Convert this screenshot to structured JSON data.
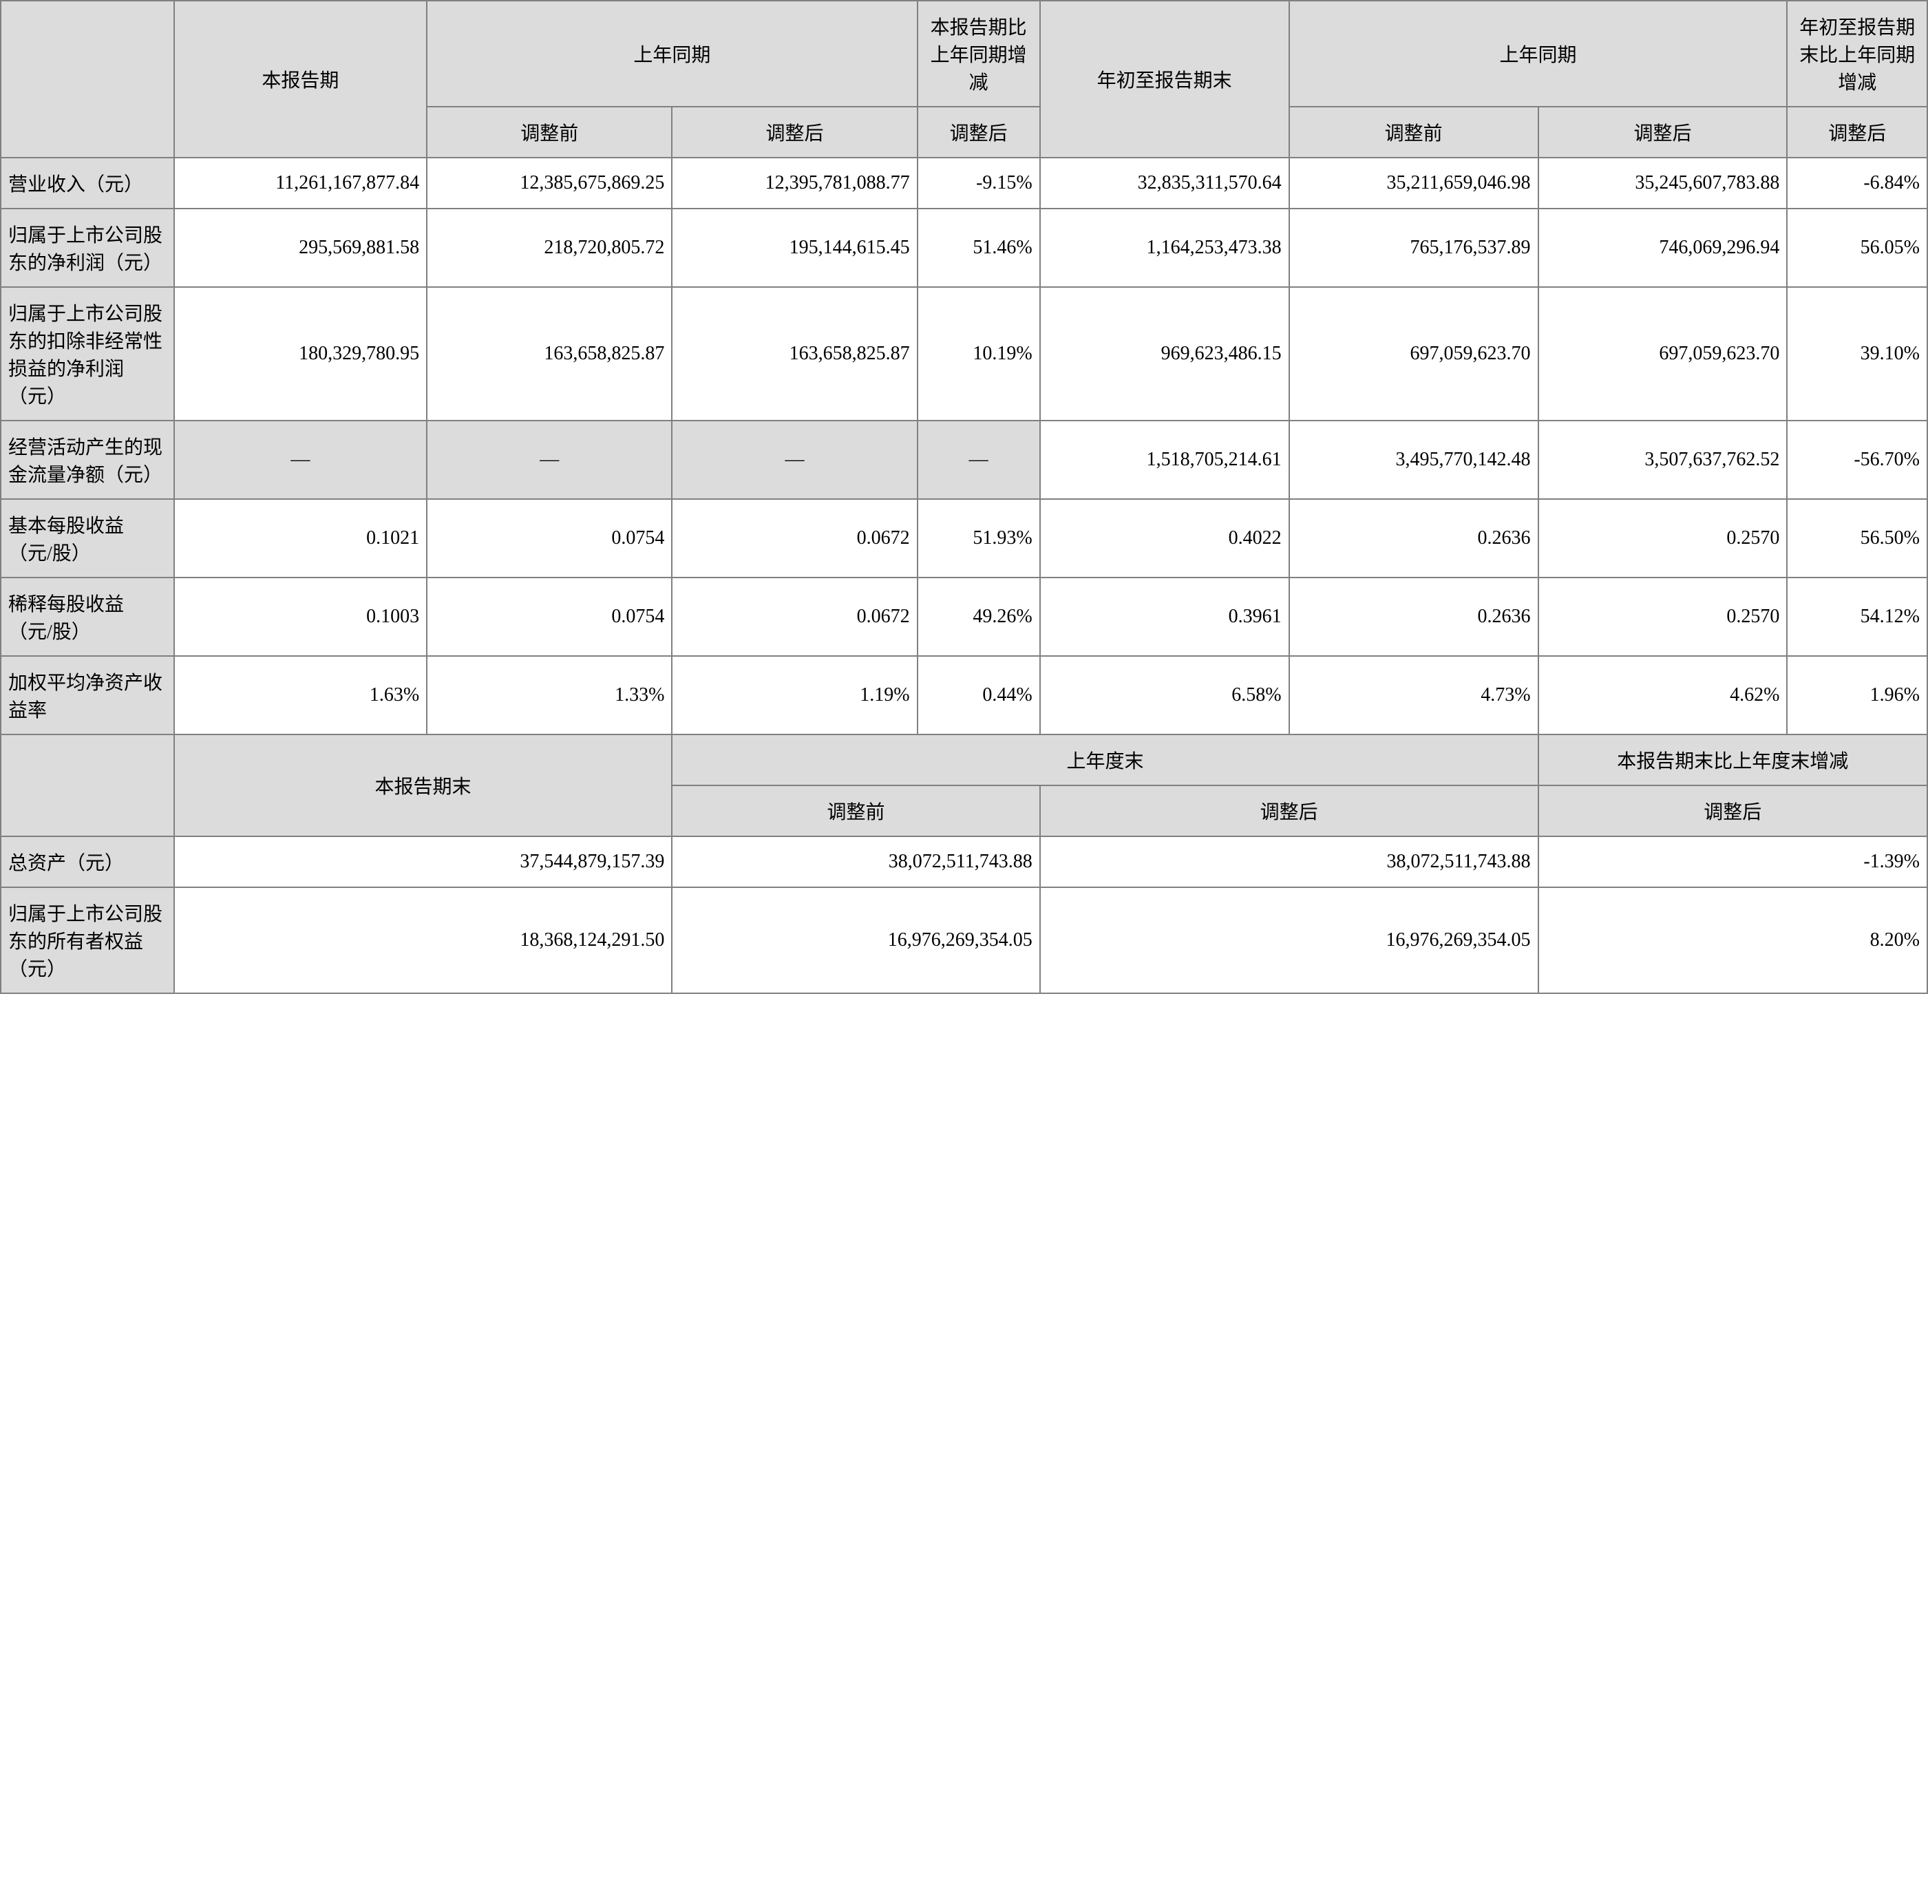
{
  "table": {
    "colors": {
      "header_bg": "#dcdcdc",
      "cell_bg": "#ffffff",
      "border": "#808080"
    },
    "font_size": 28,
    "col_widths_pct": [
      8.9,
      13.0,
      12.6,
      12.6,
      6.3,
      12.8,
      12.8,
      12.8,
      7.2
    ],
    "header1": {
      "c1": "本报告期",
      "c2": "上年同期",
      "c3": "本报告期比上年同期增减",
      "c4": "年初至报告期末",
      "c5": "上年同期",
      "c6": "年初至报告期末比上年同期增减"
    },
    "header2": {
      "c1": "调整前",
      "c2": "调整后",
      "c3": "调整后",
      "c4": "调整前",
      "c5": "调整后",
      "c6": "调整后"
    },
    "rows": [
      {
        "label": "营业收入（元）",
        "v1": "11,261,167,877.84",
        "v2": "12,385,675,869.25",
        "v3": "12,395,781,088.77",
        "v4": "-9.15%",
        "v5": "32,835,311,570.64",
        "v6": "35,211,659,046.98",
        "v7": "35,245,607,783.88",
        "v8": "-6.84%"
      },
      {
        "label": "归属于上市公司股东的净利润（元）",
        "v1": "295,569,881.58",
        "v2": "218,720,805.72",
        "v3": "195,144,615.45",
        "v4": "51.46%",
        "v5": "1,164,253,473.38",
        "v6": "765,176,537.89",
        "v7": "746,069,296.94",
        "v8": "56.05%"
      },
      {
        "label": "归属于上市公司股东的扣除非经常性损益的净利润（元）",
        "v1": "180,329,780.95",
        "v2": "163,658,825.87",
        "v3": "163,658,825.87",
        "v4": "10.19%",
        "v5": "969,623,486.15",
        "v6": "697,059,623.70",
        "v7": "697,059,623.70",
        "v8": "39.10%"
      },
      {
        "label": "经营活动产生的现金流量净额（元）",
        "dash": true,
        "v1": "—",
        "v2": "—",
        "v3": "—",
        "v4": "—",
        "v5": "1,518,705,214.61",
        "v6": "3,495,770,142.48",
        "v7": "3,507,637,762.52",
        "v8": "-56.70%"
      },
      {
        "label": "基本每股收益（元/股）",
        "v1": "0.1021",
        "v2": "0.0754",
        "v3": "0.0672",
        "v4": "51.93%",
        "v5": "0.4022",
        "v6": "0.2636",
        "v7": "0.2570",
        "v8": "56.50%"
      },
      {
        "label": "稀释每股收益（元/股）",
        "v1": "0.1003",
        "v2": "0.0754",
        "v3": "0.0672",
        "v4": "49.26%",
        "v5": "0.3961",
        "v6": "0.2636",
        "v7": "0.2570",
        "v8": "54.12%"
      },
      {
        "label": "加权平均净资产收益率",
        "v1": "1.63%",
        "v2": "1.33%",
        "v3": "1.19%",
        "v4": "0.44%",
        "v5": "6.58%",
        "v6": "4.73%",
        "v7": "4.62%",
        "v8": "1.96%"
      }
    ],
    "header3": {
      "c1": "本报告期末",
      "c2": "上年度末",
      "c3": "本报告期末比上年度末增减"
    },
    "header4": {
      "c1": "调整前",
      "c2": "调整后",
      "c3": "调整后"
    },
    "rows2": [
      {
        "label": "总资产（元）",
        "v1": "37,544,879,157.39",
        "v2": "38,072,511,743.88",
        "v3": "38,072,511,743.88",
        "v4": "-1.39%"
      },
      {
        "label": "归属于上市公司股东的所有者权益（元）",
        "v1": "18,368,124,291.50",
        "v2": "16,976,269,354.05",
        "v3": "16,976,269,354.05",
        "v4": "8.20%"
      }
    ]
  }
}
